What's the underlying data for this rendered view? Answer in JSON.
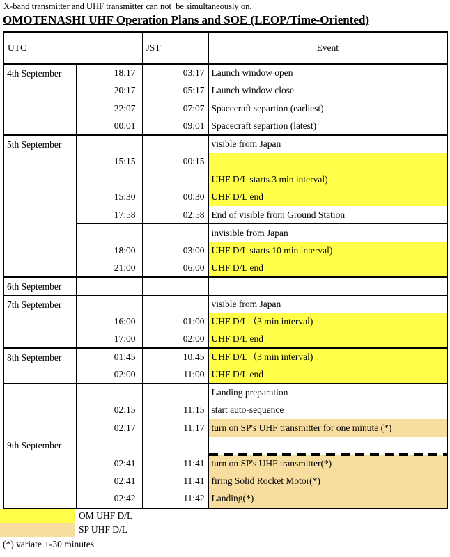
{
  "note_top": "X-band transmitter and UHF transmitter can not  be simultaneously on.",
  "title": "OMOTENASHI UHF Operation Plans and SOE (LEOP/Time-Oriented)",
  "table": {
    "headers": {
      "utc": "UTC",
      "jst": "JST",
      "event": "Event"
    },
    "sections": [
      {
        "date": "4th September",
        "rows": [
          {
            "utc": "18:17",
            "jst": "03:17",
            "event": "Launch window open",
            "highlight": ""
          },
          {
            "utc": "20:17",
            "jst": "05:17",
            "event": "Launch window close",
            "highlight": ""
          },
          {
            "utc": "22:07",
            "jst": "07:07",
            "event": "Spacecraft separtion (earliest)",
            "highlight": "",
            "subline": true
          },
          {
            "utc": "00:01",
            "jst": "09:01",
            "event": "Spacecraft separtion (latest)",
            "highlight": ""
          }
        ]
      },
      {
        "date": "5th September",
        "rows": [
          {
            "utc": "",
            "jst": "",
            "event": "visible from Japan",
            "highlight": ""
          },
          {
            "utc": "15:15",
            "jst": "00:15",
            "event": "",
            "highlight": "yellow"
          },
          {
            "utc": "",
            "jst": "",
            "event": "UHF D/L starts 3 min interval)",
            "highlight": "yellow"
          },
          {
            "utc": "15:30",
            "jst": "00:30",
            "event": "UHF D/L end",
            "highlight": "yellow"
          },
          {
            "utc": "17:58",
            "jst": "02:58",
            "event": "End of visible from Ground Station",
            "highlight": ""
          },
          {
            "utc": "",
            "jst": "",
            "event": "invisible from Japan",
            "highlight": "",
            "subline": true
          },
          {
            "utc": "18:00",
            "jst": "03:00",
            "event": "UHF D/L starts 10 min interval)",
            "highlight": "yellow"
          },
          {
            "utc": "21:00",
            "jst": "06:00",
            "event": "UHF D/L end",
            "highlight": "yellow"
          }
        ]
      },
      {
        "date": "6th September",
        "rows": [
          {
            "utc": "",
            "jst": "",
            "event": "",
            "highlight": ""
          }
        ]
      },
      {
        "date": "7th September",
        "rows": [
          {
            "utc": "",
            "jst": "",
            "event": "visible from Japan",
            "highlight": ""
          },
          {
            "utc": "16:00",
            "jst": "01:00",
            "event": "UHF D/L（3 min interval)",
            "highlight": "yellow"
          },
          {
            "utc": "17:00",
            "jst": "02:00",
            "event": "UHF D/L end",
            "highlight": "yellow"
          }
        ]
      },
      {
        "date": "8th September",
        "rows": [
          {
            "utc": "01:45",
            "jst": "10:45",
            "event": "UHF D/L（3 min interval)",
            "highlight": "yellow"
          },
          {
            "utc": "02:00",
            "jst": "11:00",
            "event": "UHF D/L end",
            "highlight": "yellow"
          }
        ]
      },
      {
        "date": "9th September",
        "date_valign": "middle",
        "rows": [
          {
            "utc": "",
            "jst": "",
            "event": "Landing preparation",
            "highlight": ""
          },
          {
            "utc": "02:15",
            "jst": "11:15",
            "event": "start auto-sequence",
            "highlight": ""
          },
          {
            "utc": "02:17",
            "jst": "11:17",
            "event": "turn on SP's UHF transmitter for one minute (*)",
            "highlight": "orange"
          },
          {
            "utc": "",
            "jst": "",
            "event": "",
            "highlight": "",
            "dashed_bottom": true
          },
          {
            "utc": "02:41",
            "jst": "11:41",
            "event": "turn on SP's UHF transmitter(*)",
            "highlight": "orange"
          },
          {
            "utc": "02:41",
            "jst": "11:41",
            "event": "firing Solid Rocket Motor(*)",
            "highlight": "orange"
          },
          {
            "utc": "02:42",
            "jst": "11:42",
            "event": "Landing(*)",
            "highlight": "orange"
          }
        ]
      }
    ]
  },
  "legend": {
    "items": [
      {
        "swatch": "yellow",
        "label": "OM UHF D/L"
      },
      {
        "swatch": "orange",
        "label": "SP UHF D/L"
      }
    ]
  },
  "footnote": "(*) variate +-30 minutes",
  "colors": {
    "highlight_yellow": "#FFFF4A",
    "highlight_orange": "#F7DEA0"
  }
}
